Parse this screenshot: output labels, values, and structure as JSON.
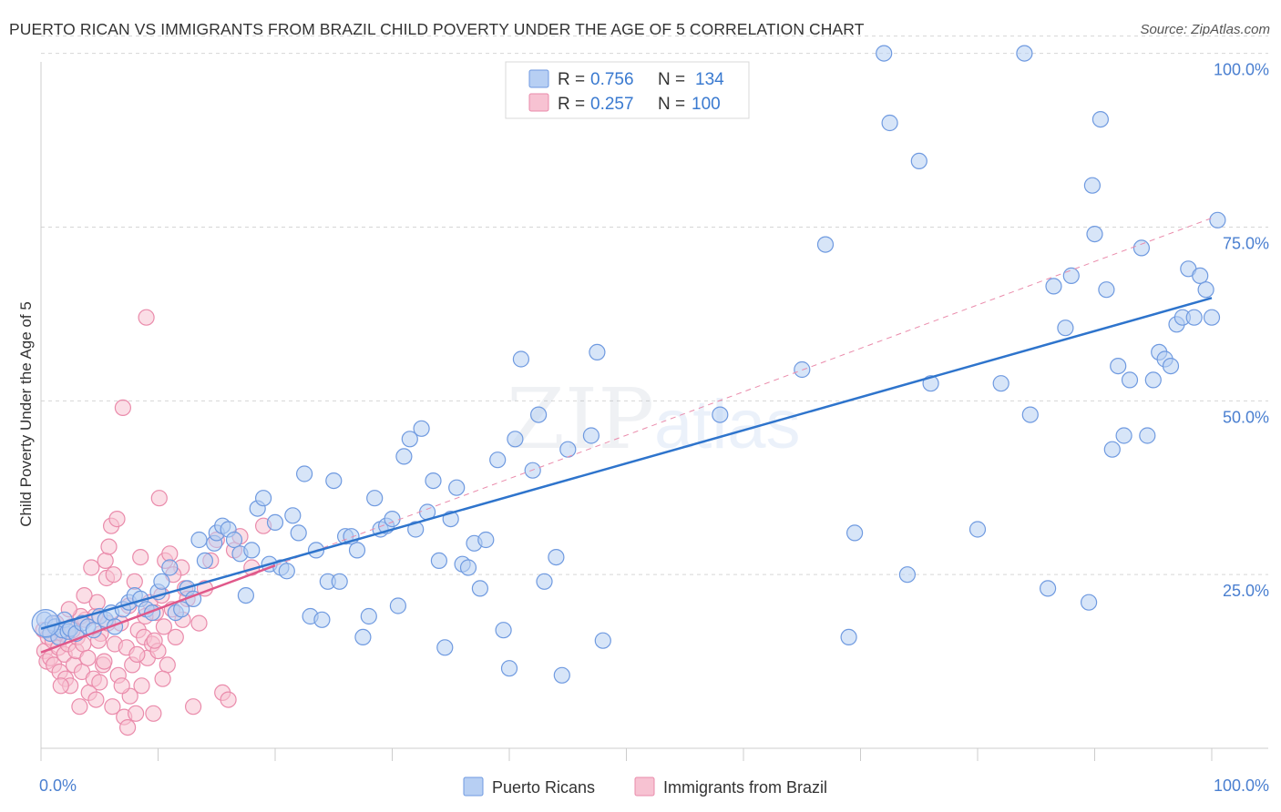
{
  "title": "PUERTO RICAN VS IMMIGRANTS FROM BRAZIL CHILD POVERTY UNDER THE AGE OF 5 CORRELATION CHART",
  "source": "Source: ZipAtlas.com",
  "watermark": {
    "zip": "ZIP",
    "atlas": "atlas"
  },
  "colors": {
    "blue_fill": "#b7cff3",
    "blue_stroke": "#6f9ae0",
    "blue_line": "#2e74cc",
    "pink_fill": "#f7c2d2",
    "pink_stroke": "#ea8bab",
    "pink_line": "#e0588a",
    "grid": "#d6d6d6",
    "axis_label": "#4a7fd0"
  },
  "legend": {
    "rows": [
      {
        "r_label": "R =",
        "r_value": "0.756",
        "n_label": "N =",
        "n_value": "134"
      },
      {
        "r_label": "R =",
        "r_value": "0.257",
        "n_label": "N =",
        "n_value": "100"
      }
    ]
  },
  "chart_data": {
    "type": "scatter",
    "title": "PUERTO RICAN VS IMMIGRANTS FROM BRAZIL CHILD POVERTY UNDER THE AGE OF 5 CORRELATION CHART",
    "xlabel": "",
    "ylabel": "Child Poverty Under the Age of 5",
    "xlim": [
      0,
      100
    ],
    "ylim": [
      0,
      102
    ],
    "x_tick_labels": [
      "0.0%",
      "100.0%"
    ],
    "y_tick_labels": [
      "25.0%",
      "50.0%",
      "75.0%",
      "100.0%"
    ],
    "y_ticks": [
      25,
      50,
      75,
      100
    ],
    "legend_placement": "top-center",
    "series": [
      {
        "name": "Puerto Ricans",
        "R": 0.756,
        "N": 134,
        "trend": {
          "x": [
            0,
            100
          ],
          "y": [
            17.2,
            64.8
          ]
        },
        "points": [
          [
            0.3,
            18.5
          ],
          [
            0.5,
            17
          ],
          [
            0.8,
            16.5
          ],
          [
            1,
            18
          ],
          [
            1.2,
            17.5
          ],
          [
            1.5,
            16
          ],
          [
            1.8,
            17
          ],
          [
            2,
            18.5
          ],
          [
            2.3,
            16.8
          ],
          [
            2.5,
            17.2
          ],
          [
            3,
            16.5
          ],
          [
            3.5,
            18
          ],
          [
            4,
            17.5
          ],
          [
            4.5,
            17
          ],
          [
            5,
            19
          ],
          [
            5.5,
            18.5
          ],
          [
            6,
            19.5
          ],
          [
            6.3,
            17.5
          ],
          [
            7,
            20
          ],
          [
            7.5,
            21
          ],
          [
            8,
            22
          ],
          [
            8.5,
            21.5
          ],
          [
            9,
            20
          ],
          [
            9.5,
            19.5
          ],
          [
            10,
            22.5
          ],
          [
            10.3,
            24
          ],
          [
            11,
            26
          ],
          [
            11.5,
            19.5
          ],
          [
            12,
            20
          ],
          [
            12.5,
            23
          ],
          [
            13,
            21.5
          ],
          [
            13.5,
            30
          ],
          [
            14,
            27
          ],
          [
            14.8,
            29.5
          ],
          [
            15,
            31
          ],
          [
            15.5,
            32
          ],
          [
            16,
            31.5
          ],
          [
            16.5,
            30
          ],
          [
            17,
            28
          ],
          [
            17.5,
            22
          ],
          [
            18,
            28.5
          ],
          [
            18.5,
            34.5
          ],
          [
            19,
            36
          ],
          [
            19.5,
            26.5
          ],
          [
            20,
            32.5
          ],
          [
            20.5,
            26
          ],
          [
            21,
            25.5
          ],
          [
            21.5,
            33.5
          ],
          [
            22,
            31
          ],
          [
            22.5,
            39.5
          ],
          [
            23,
            19
          ],
          [
            23.5,
            28.5
          ],
          [
            24,
            18.5
          ],
          [
            24.5,
            24
          ],
          [
            25,
            38.5
          ],
          [
            25.5,
            24
          ],
          [
            26,
            30.5
          ],
          [
            26.5,
            30.5
          ],
          [
            27,
            28.5
          ],
          [
            27.5,
            16
          ],
          [
            28,
            19
          ],
          [
            28.5,
            36
          ],
          [
            29,
            31.5
          ],
          [
            29.5,
            32
          ],
          [
            30,
            33
          ],
          [
            30.5,
            20.5
          ],
          [
            31,
            42
          ],
          [
            31.5,
            44.5
          ],
          [
            32,
            31.5
          ],
          [
            32.5,
            46
          ],
          [
            33,
            34
          ],
          [
            33.5,
            38.5
          ],
          [
            34,
            27
          ],
          [
            34.5,
            14.5
          ],
          [
            35,
            33
          ],
          [
            35.5,
            37.5
          ],
          [
            36,
            26.5
          ],
          [
            36.5,
            26
          ],
          [
            37,
            29.5
          ],
          [
            37.5,
            23
          ],
          [
            38,
            30
          ],
          [
            39,
            41.5
          ],
          [
            39.5,
            17
          ],
          [
            40,
            11.5
          ],
          [
            40.5,
            44.5
          ],
          [
            41,
            56
          ],
          [
            42,
            40
          ],
          [
            42.5,
            48
          ],
          [
            43,
            24
          ],
          [
            44,
            27.5
          ],
          [
            44.5,
            10.5
          ],
          [
            45,
            43
          ],
          [
            47,
            45
          ],
          [
            47.5,
            57
          ],
          [
            48,
            15.5
          ],
          [
            58,
            48
          ],
          [
            65,
            54.5
          ],
          [
            67,
            72.5
          ],
          [
            69,
            16
          ],
          [
            69.5,
            31
          ],
          [
            72,
            100
          ],
          [
            72.5,
            90
          ],
          [
            74,
            25
          ],
          [
            75,
            84.5
          ],
          [
            76,
            52.5
          ],
          [
            80,
            31.5
          ],
          [
            82,
            52.5
          ],
          [
            84,
            100
          ],
          [
            84.5,
            48
          ],
          [
            86,
            23
          ],
          [
            86.5,
            66.5
          ],
          [
            87.5,
            60.5
          ],
          [
            88,
            68
          ],
          [
            89.5,
            21
          ],
          [
            89.8,
            81
          ],
          [
            90,
            74
          ],
          [
            90.5,
            90.5
          ],
          [
            91,
            66
          ],
          [
            91.5,
            43
          ],
          [
            92,
            55
          ],
          [
            92.5,
            45
          ],
          [
            93,
            53
          ],
          [
            94,
            72
          ],
          [
            94.5,
            45
          ],
          [
            95,
            53
          ],
          [
            95.5,
            57
          ],
          [
            96,
            56
          ],
          [
            96.5,
            55
          ],
          [
            97,
            61
          ],
          [
            97.5,
            62
          ],
          [
            98,
            69
          ],
          [
            98.5,
            62
          ],
          [
            99,
            68
          ],
          [
            99.5,
            66
          ],
          [
            100,
            62
          ],
          [
            100.5,
            76
          ]
        ]
      },
      {
        "name": "Immigrants from Brazil",
        "R": 0.257,
        "N": 100,
        "trend": {
          "x": [
            0,
            20
          ],
          "y": [
            13.8,
            26.3
          ]
        },
        "ref_line": {
          "x": [
            0,
            100
          ],
          "y": [
            13.8,
            76.3
          ]
        },
        "points": [
          [
            0.2,
            17
          ],
          [
            0.3,
            14
          ],
          [
            0.5,
            12.5
          ],
          [
            0.6,
            16
          ],
          [
            0.8,
            13
          ],
          [
            1,
            15.5
          ],
          [
            1.1,
            12
          ],
          [
            1.3,
            18
          ],
          [
            1.5,
            14.5
          ],
          [
            1.6,
            11
          ],
          [
            1.8,
            16.5
          ],
          [
            2,
            13.5
          ],
          [
            2.1,
            10
          ],
          [
            2.3,
            15
          ],
          [
            2.5,
            9
          ],
          [
            2.6,
            17.5
          ],
          [
            2.8,
            12
          ],
          [
            3,
            14
          ],
          [
            3.1,
            16
          ],
          [
            3.3,
            6
          ],
          [
            3.5,
            11
          ],
          [
            3.6,
            15
          ],
          [
            3.8,
            18.5
          ],
          [
            4,
            13
          ],
          [
            4.1,
            8
          ],
          [
            4.3,
            26
          ],
          [
            4.5,
            10
          ],
          [
            4.6,
            19
          ],
          [
            4.8,
            21
          ],
          [
            5,
            9.5
          ],
          [
            5.1,
            16.5
          ],
          [
            5.3,
            12
          ],
          [
            5.5,
            27
          ],
          [
            5.6,
            24.5
          ],
          [
            5.8,
            29
          ],
          [
            6,
            32
          ],
          [
            6.1,
            6
          ],
          [
            6.3,
            15
          ],
          [
            6.5,
            33
          ],
          [
            6.6,
            10.5
          ],
          [
            6.8,
            18
          ],
          [
            7,
            49
          ],
          [
            7.1,
            4.5
          ],
          [
            7.3,
            14.5
          ],
          [
            7.5,
            20.5
          ],
          [
            7.6,
            7.5
          ],
          [
            7.8,
            12
          ],
          [
            8,
            24
          ],
          [
            8.1,
            5
          ],
          [
            8.3,
            17
          ],
          [
            8.5,
            27.5
          ],
          [
            8.6,
            9
          ],
          [
            8.8,
            16
          ],
          [
            9,
            62
          ],
          [
            9.1,
            13
          ],
          [
            9.3,
            21
          ],
          [
            9.5,
            15
          ],
          [
            9.6,
            5
          ],
          [
            9.8,
            19.5
          ],
          [
            10,
            14
          ],
          [
            10.1,
            36
          ],
          [
            10.3,
            22
          ],
          [
            10.5,
            17.5
          ],
          [
            10.6,
            27
          ],
          [
            10.8,
            12
          ],
          [
            11,
            28
          ],
          [
            11.2,
            20
          ],
          [
            11.5,
            16
          ],
          [
            12,
            26
          ],
          [
            12.3,
            23
          ],
          [
            12.5,
            21.5
          ],
          [
            13,
            6
          ],
          [
            13.5,
            18
          ],
          [
            14,
            23
          ],
          [
            14.5,
            27
          ],
          [
            15,
            30
          ],
          [
            15.5,
            8
          ],
          [
            16,
            7
          ],
          [
            16.5,
            28.5
          ],
          [
            17,
            30.5
          ],
          [
            18,
            26
          ],
          [
            19,
            32
          ],
          [
            2.7,
            17
          ],
          [
            3.4,
            19
          ],
          [
            4.7,
            7
          ],
          [
            5.4,
            12.5
          ],
          [
            6.2,
            25
          ],
          [
            6.9,
            9
          ],
          [
            7.4,
            3
          ],
          [
            8.2,
            13.5
          ],
          [
            8.9,
            19
          ],
          [
            9.7,
            15.5
          ],
          [
            10.4,
            10
          ],
          [
            11.3,
            25
          ],
          [
            12.1,
            18.5
          ],
          [
            1.7,
            9
          ],
          [
            2.4,
            20
          ],
          [
            3.7,
            22
          ],
          [
            4.9,
            15.5
          ],
          [
            5.7,
            18
          ]
        ]
      }
    ]
  },
  "bottom_legend": {
    "items": [
      {
        "label": "Puerto Ricans"
      },
      {
        "label": "Immigrants from Brazil"
      }
    ]
  }
}
